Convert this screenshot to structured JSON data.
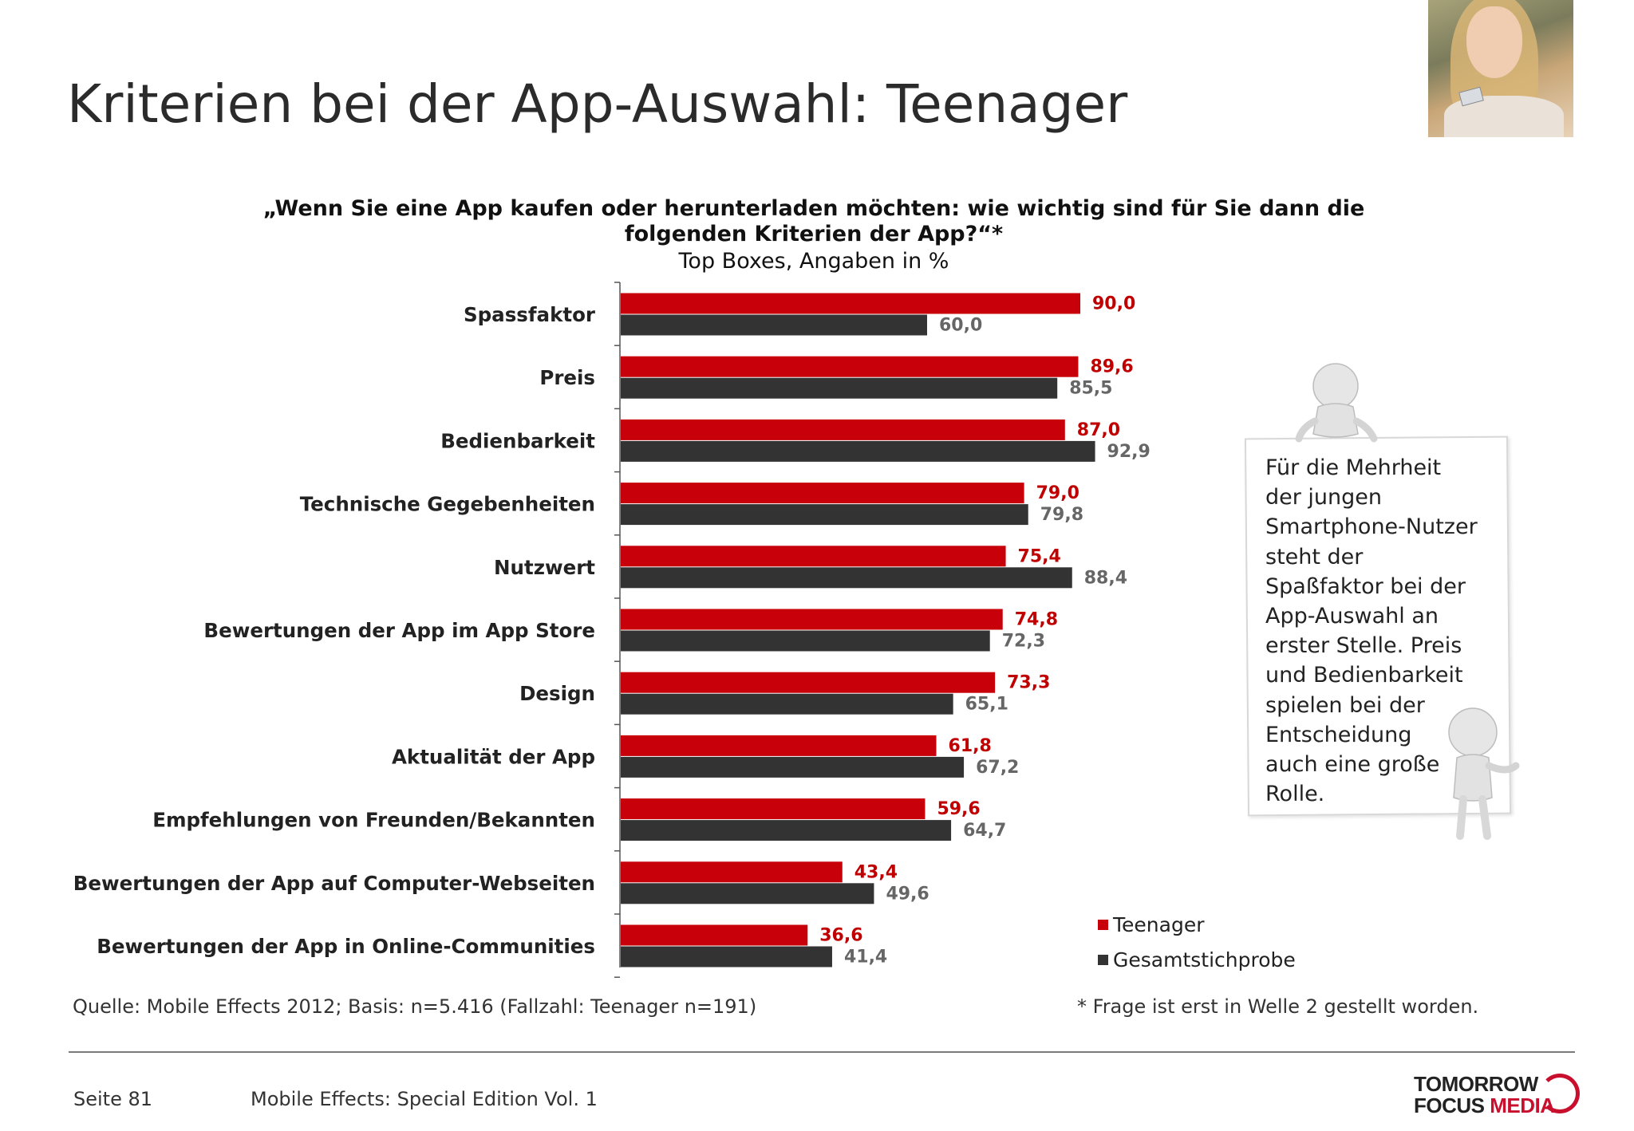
{
  "page": {
    "title": "Kriterien bei der App-Auswahl: Teenager",
    "question_line1": "„Wenn Sie eine App kaufen oder herunterladen möchten: wie wichtig sind für Sie dann die",
    "question_line2": "folgenden Kriterien der App?“*",
    "subtitle": "Top Boxes, Angaben in %",
    "callout_lines": [
      "Für die Mehrheit",
      "der jungen",
      "Smartphone-Nutzer",
      "steht der",
      "Spaßfaktor bei der",
      "App-Auswahl an",
      "erster Stelle. Preis",
      "und Bedienbarkeit",
      "spielen bei der",
      "Entscheidung",
      "auch eine große",
      "Rolle."
    ],
    "source": "Quelle: Mobile Effects 2012; Basis: n=5.416 (Fallzahl: Teenager n=191)",
    "footnote": "* Frage ist erst in Welle 2 gestellt worden.",
    "page_number": "Seite 81",
    "edition": "Mobile Effects: Special Edition Vol. 1",
    "logo_line1": "TOMORROW",
    "logo_line2a": "FOCUS ",
    "logo_line2b": "MEDIA"
  },
  "colors": {
    "teenager": "#c8000a",
    "gesamt": "#333333",
    "teen_label": "#c00000",
    "gesamt_label": "#666666"
  },
  "chart_data": {
    "type": "bar",
    "orientation": "horizontal",
    "title": "„Wenn Sie eine App kaufen oder herunterladen möchten: wie wichtig sind für Sie dann die folgenden Kriterien der App?“*",
    "subtitle": "Top Boxes, Angaben in %",
    "categories": [
      "Spassfaktor",
      "Preis",
      "Bedienbarkeit",
      "Technische Gegebenheiten",
      "Nutzwert",
      "Bewertungen der App im App Store",
      "Design",
      "Aktualität der App",
      "Empfehlungen von Freunden/Bekannten",
      "Bewertungen der App auf Computer-Webseiten",
      "Bewertungen der App in Online-Communities"
    ],
    "series": [
      {
        "name": "Teenager",
        "values": [
          90.0,
          89.6,
          87.0,
          79.0,
          75.4,
          74.8,
          73.3,
          61.8,
          59.6,
          43.4,
          36.6
        ],
        "labels": [
          "90,0",
          "89,6",
          "87,0",
          "79,0",
          "75,4",
          "74,8",
          "73,3",
          "61,8",
          "59,6",
          "43,4",
          "36,6"
        ]
      },
      {
        "name": "Gesamtstichprobe",
        "values": [
          60.0,
          85.5,
          92.9,
          79.8,
          88.4,
          72.3,
          65.1,
          67.2,
          64.7,
          49.6,
          41.4
        ],
        "labels": [
          "60,0",
          "85,5",
          "92,9",
          "79,8",
          "88,4",
          "72,3",
          "65,1",
          "67,2",
          "64,7",
          "49,6",
          "41,4"
        ]
      }
    ],
    "xlim": [
      0,
      100
    ],
    "grid": false,
    "legend": "bottom-right"
  }
}
